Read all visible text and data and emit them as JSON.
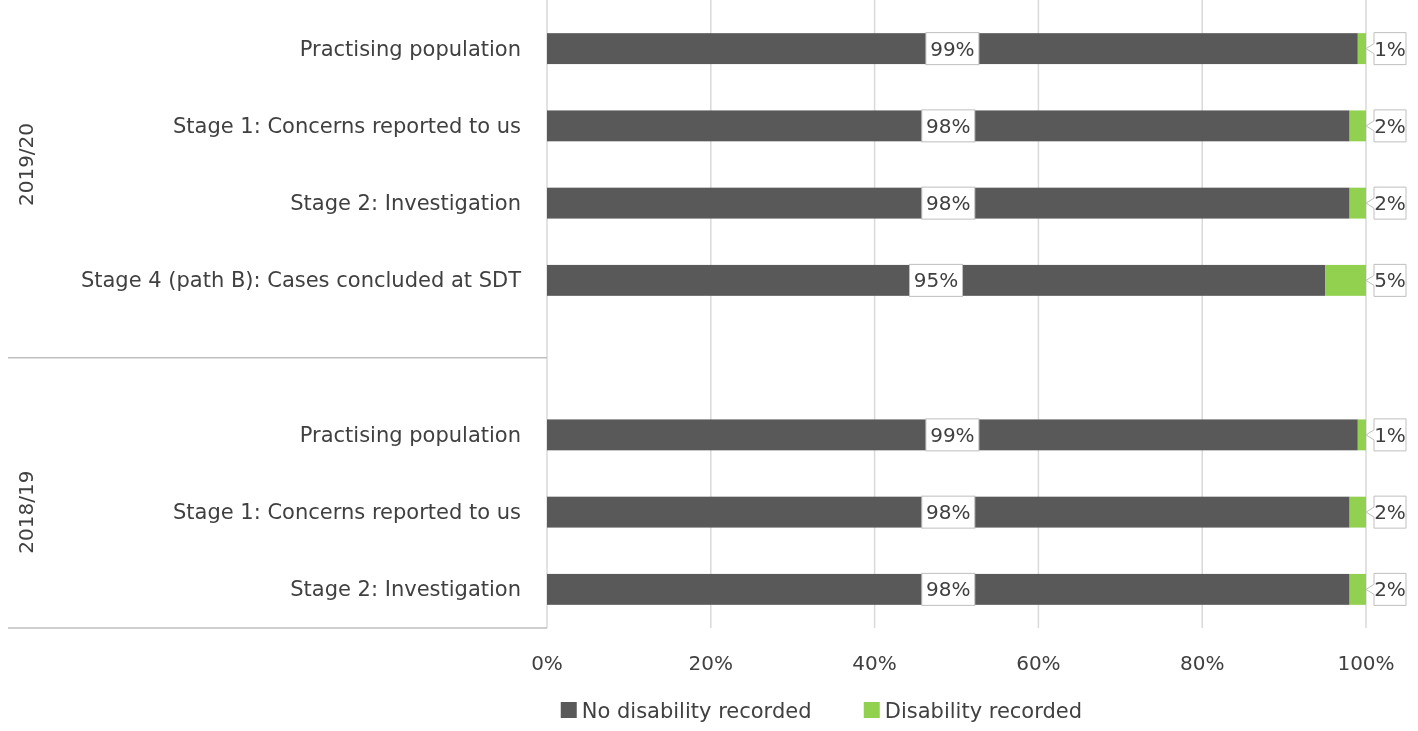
{
  "chart_data": {
    "type": "bar",
    "orientation": "horizontal",
    "stacked": true,
    "categories": [
      "Practising population",
      "Stage 1: Concerns reported to us",
      "Stage 2: Investigation",
      "Stage 4 (path B): Cases concluded at SDT",
      null,
      "Practising population",
      "Stage 1: Concerns reported to us",
      "Stage 2: Investigation"
    ],
    "series": [
      {
        "name": "No disability recorded",
        "color": "#595959",
        "values": [
          99,
          98,
          98,
          95,
          null,
          99,
          98,
          98
        ],
        "value_labels": [
          "99%",
          "98%",
          "98%",
          "95%",
          null,
          "99%",
          "98%",
          "98%"
        ]
      },
      {
        "name": "Disability recorded",
        "color": "#92d050",
        "values": [
          1,
          2,
          2,
          5,
          null,
          1,
          2,
          2
        ],
        "value_labels": [
          "1%",
          "2%",
          "2%",
          "5%",
          null,
          "1%",
          "2%",
          "2%"
        ]
      }
    ],
    "xlim": [
      0,
      100
    ],
    "xticks": [
      {
        "value": 0,
        "label": "0%"
      },
      {
        "value": 20,
        "label": "20%"
      },
      {
        "value": 40,
        "label": "40%"
      },
      {
        "value": 60,
        "label": "60%"
      },
      {
        "value": 80,
        "label": "80%"
      },
      {
        "value": 100,
        "label": "100%"
      }
    ],
    "grid": "x",
    "legend": "bottom",
    "annotations": [
      "2019/20",
      "2018/19"
    ]
  }
}
